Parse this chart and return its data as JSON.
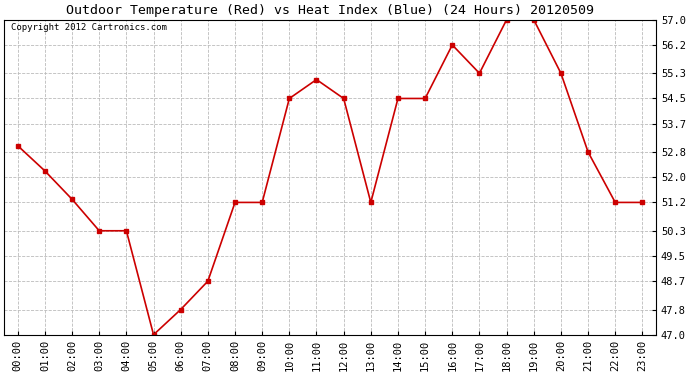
{
  "title": "Outdoor Temperature (Red) vs Heat Index (Blue) (24 Hours) 20120509",
  "copyright_text": "Copyright 2012 Cartronics.com",
  "x_labels": [
    "00:00",
    "01:00",
    "02:00",
    "03:00",
    "04:00",
    "05:00",
    "06:00",
    "07:00",
    "08:00",
    "09:00",
    "10:00",
    "11:00",
    "12:00",
    "13:00",
    "14:00",
    "15:00",
    "16:00",
    "17:00",
    "18:00",
    "19:00",
    "20:00",
    "21:00",
    "22:00",
    "23:00"
  ],
  "temp_values": [
    53.0,
    52.2,
    51.3,
    50.3,
    50.3,
    47.0,
    47.8,
    48.7,
    51.2,
    51.2,
    54.5,
    55.1,
    54.5,
    51.2,
    54.5,
    54.5,
    56.2,
    55.3,
    57.0,
    57.0,
    55.3,
    52.8,
    51.2,
    51.2
  ],
  "heat_values": [],
  "line_color": "#cc0000",
  "heat_color": "#0000cc",
  "background_color": "#ffffff",
  "plot_bg_color": "#ffffff",
  "grid_color": "#bbbbbb",
  "title_fontsize": 9.5,
  "copyright_fontsize": 6.5,
  "tick_fontsize": 7.5,
  "y_min": 47.0,
  "y_max": 57.0,
  "y_ticks": [
    47.0,
    47.8,
    48.7,
    49.5,
    50.3,
    51.2,
    52.0,
    52.8,
    53.7,
    54.5,
    55.3,
    56.2,
    57.0
  ]
}
